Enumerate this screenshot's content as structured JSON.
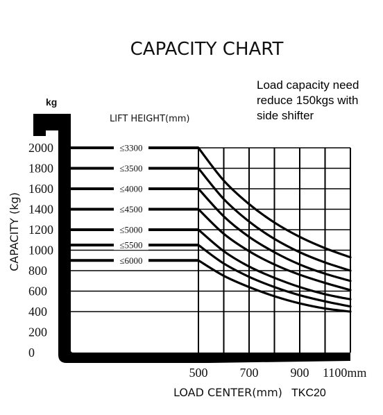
{
  "chart_data": {
    "type": "line",
    "title": "CAPACITY CHART",
    "note_lines": [
      "Load capacity need",
      "reduce 150kgs with",
      "side shifter"
    ],
    "y_unit": "kg",
    "ylabel": "CAPACITY (kg)",
    "xlabel": "LOAD CENTER(mm)",
    "model": "TKC20",
    "lift_height_title": "LIFT HEIGHT(mm)",
    "yticks": [
      0,
      200,
      400,
      600,
      800,
      1000,
      1200,
      1400,
      1600,
      1800,
      2000
    ],
    "ytick_labels": [
      "0",
      "200",
      "400",
      "600",
      "800",
      "1000",
      "1200",
      "1400",
      "1600",
      "1800",
      "2000"
    ],
    "xticks": [
      500,
      700,
      900,
      1100
    ],
    "xtick_labels": [
      "500",
      "700",
      "900",
      "1100mm"
    ],
    "xlim": [
      500,
      1100
    ],
    "ylim": [
      0,
      2000
    ],
    "grid_x": [
      500,
      600,
      700,
      800,
      900,
      1000,
      1100
    ],
    "grid_y": [
      400,
      600,
      800,
      1000,
      1200,
      1400,
      1600,
      1800,
      2000
    ],
    "series": [
      {
        "name": "≤3300",
        "rated": 2000,
        "x": [
          500,
          600,
          700,
          800,
          900,
          1000,
          1100
        ],
        "y": [
          2000,
          1680,
          1450,
          1270,
          1130,
          1020,
          930
        ]
      },
      {
        "name": "≤3500",
        "rated": 1800,
        "x": [
          500,
          600,
          700,
          800,
          900,
          1000,
          1100
        ],
        "y": [
          1800,
          1500,
          1280,
          1110,
          980,
          880,
          800
        ]
      },
      {
        "name": "≤4000",
        "rated": 1600,
        "x": [
          500,
          600,
          700,
          800,
          900,
          1000,
          1100
        ],
        "y": [
          1600,
          1330,
          1130,
          980,
          860,
          770,
          700
        ]
      },
      {
        "name": "≤4500",
        "rated": 1400,
        "x": [
          500,
          600,
          700,
          800,
          900,
          1000,
          1100
        ],
        "y": [
          1400,
          1160,
          990,
          860,
          760,
          680,
          610
        ]
      },
      {
        "name": "≤5000",
        "rated": 1200,
        "x": [
          500,
          600,
          700,
          800,
          900,
          1000,
          1100
        ],
        "y": [
          1200,
          990,
          840,
          730,
          640,
          570,
          520
        ]
      },
      {
        "name": "≤5500",
        "rated": 1050,
        "x": [
          500,
          600,
          700,
          800,
          900,
          1000,
          1100
        ],
        "y": [
          1050,
          870,
          740,
          640,
          560,
          500,
          450
        ]
      },
      {
        "name": "≤6000",
        "rated": 900,
        "x": [
          500,
          600,
          700,
          800,
          900,
          1000,
          1100
        ],
        "y": [
          900,
          750,
          640,
          550,
          480,
          430,
          400
        ]
      }
    ]
  }
}
